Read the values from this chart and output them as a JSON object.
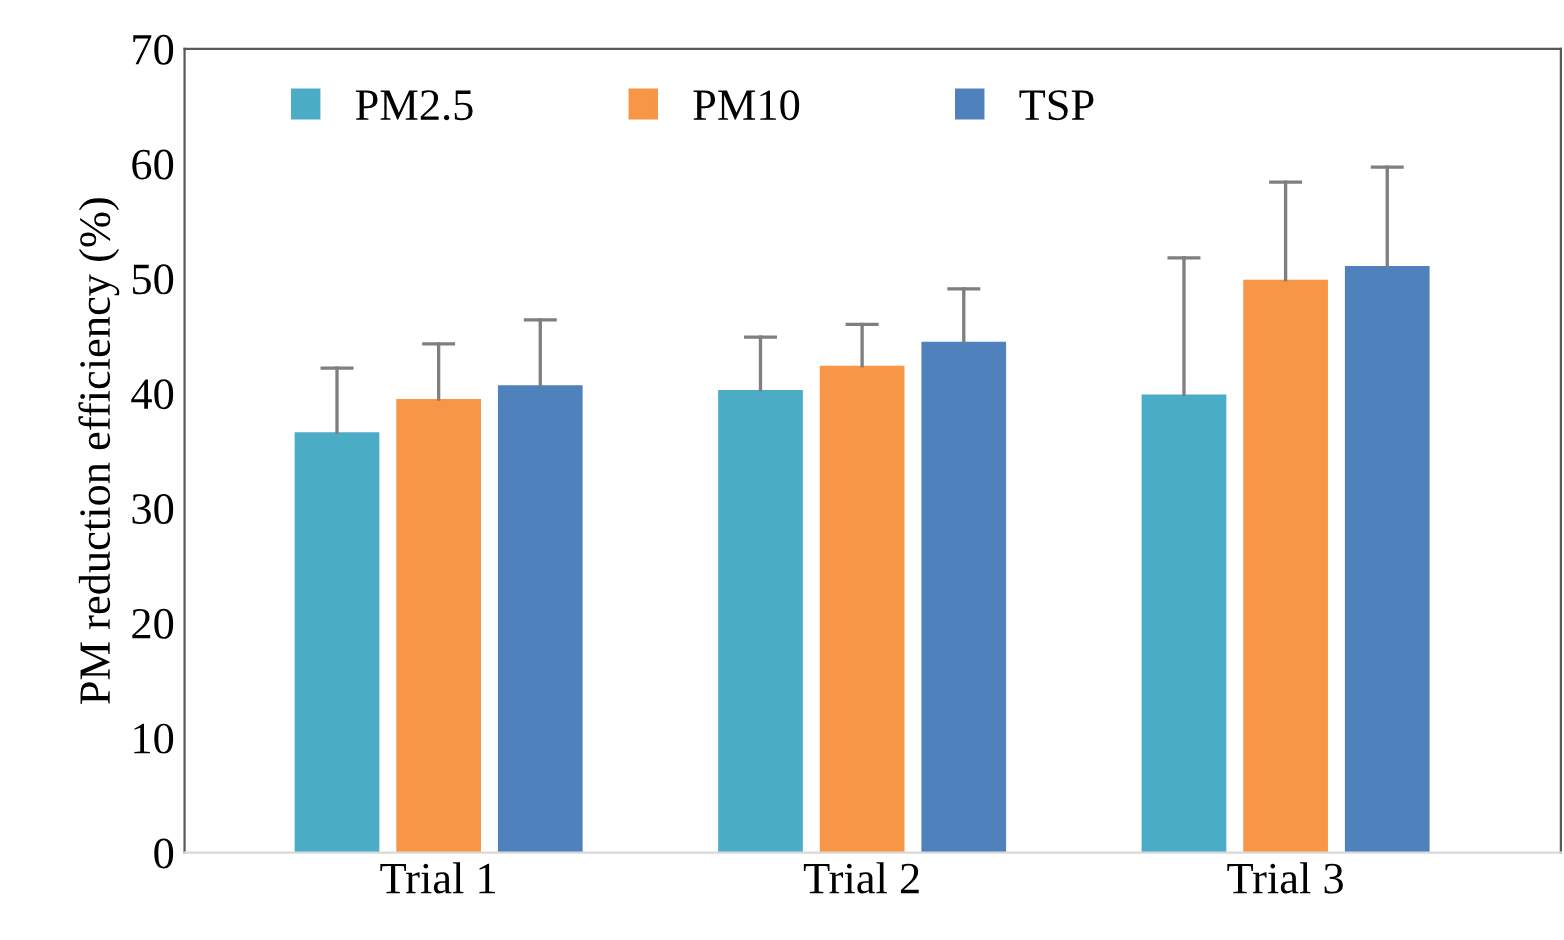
{
  "chart_data": {
    "type": "bar",
    "ylabel": "PM reduction efficiency (%)",
    "categories": [
      "Trial 1",
      "Trial 2",
      "Trial 3"
    ],
    "series": [
      {
        "name": "PM2.5",
        "color": "#4bacc6",
        "values": [
          36.6,
          40.3,
          39.9
        ],
        "errors": [
          [
            36.6,
            42.2
          ],
          [
            40.3,
            44.9
          ],
          [
            39.9,
            51.8
          ]
        ]
      },
      {
        "name": "PM10",
        "color": "#f79646",
        "values": [
          39.5,
          42.4,
          49.9
        ],
        "errors": [
          [
            39.5,
            44.3
          ],
          [
            42.4,
            46.0
          ],
          [
            49.9,
            58.4
          ]
        ]
      },
      {
        "name": "TSP",
        "color": "#4f81bd",
        "values": [
          40.7,
          44.5,
          51.1
        ],
        "errors": [
          [
            40.7,
            46.4
          ],
          [
            44.5,
            49.1
          ],
          [
            51.1,
            59.7
          ]
        ]
      }
    ],
    "ylim": [
      0,
      70
    ],
    "yticks": [
      0,
      10,
      20,
      30,
      40,
      50,
      60,
      70
    ],
    "grid": false,
    "legend": "top"
  }
}
